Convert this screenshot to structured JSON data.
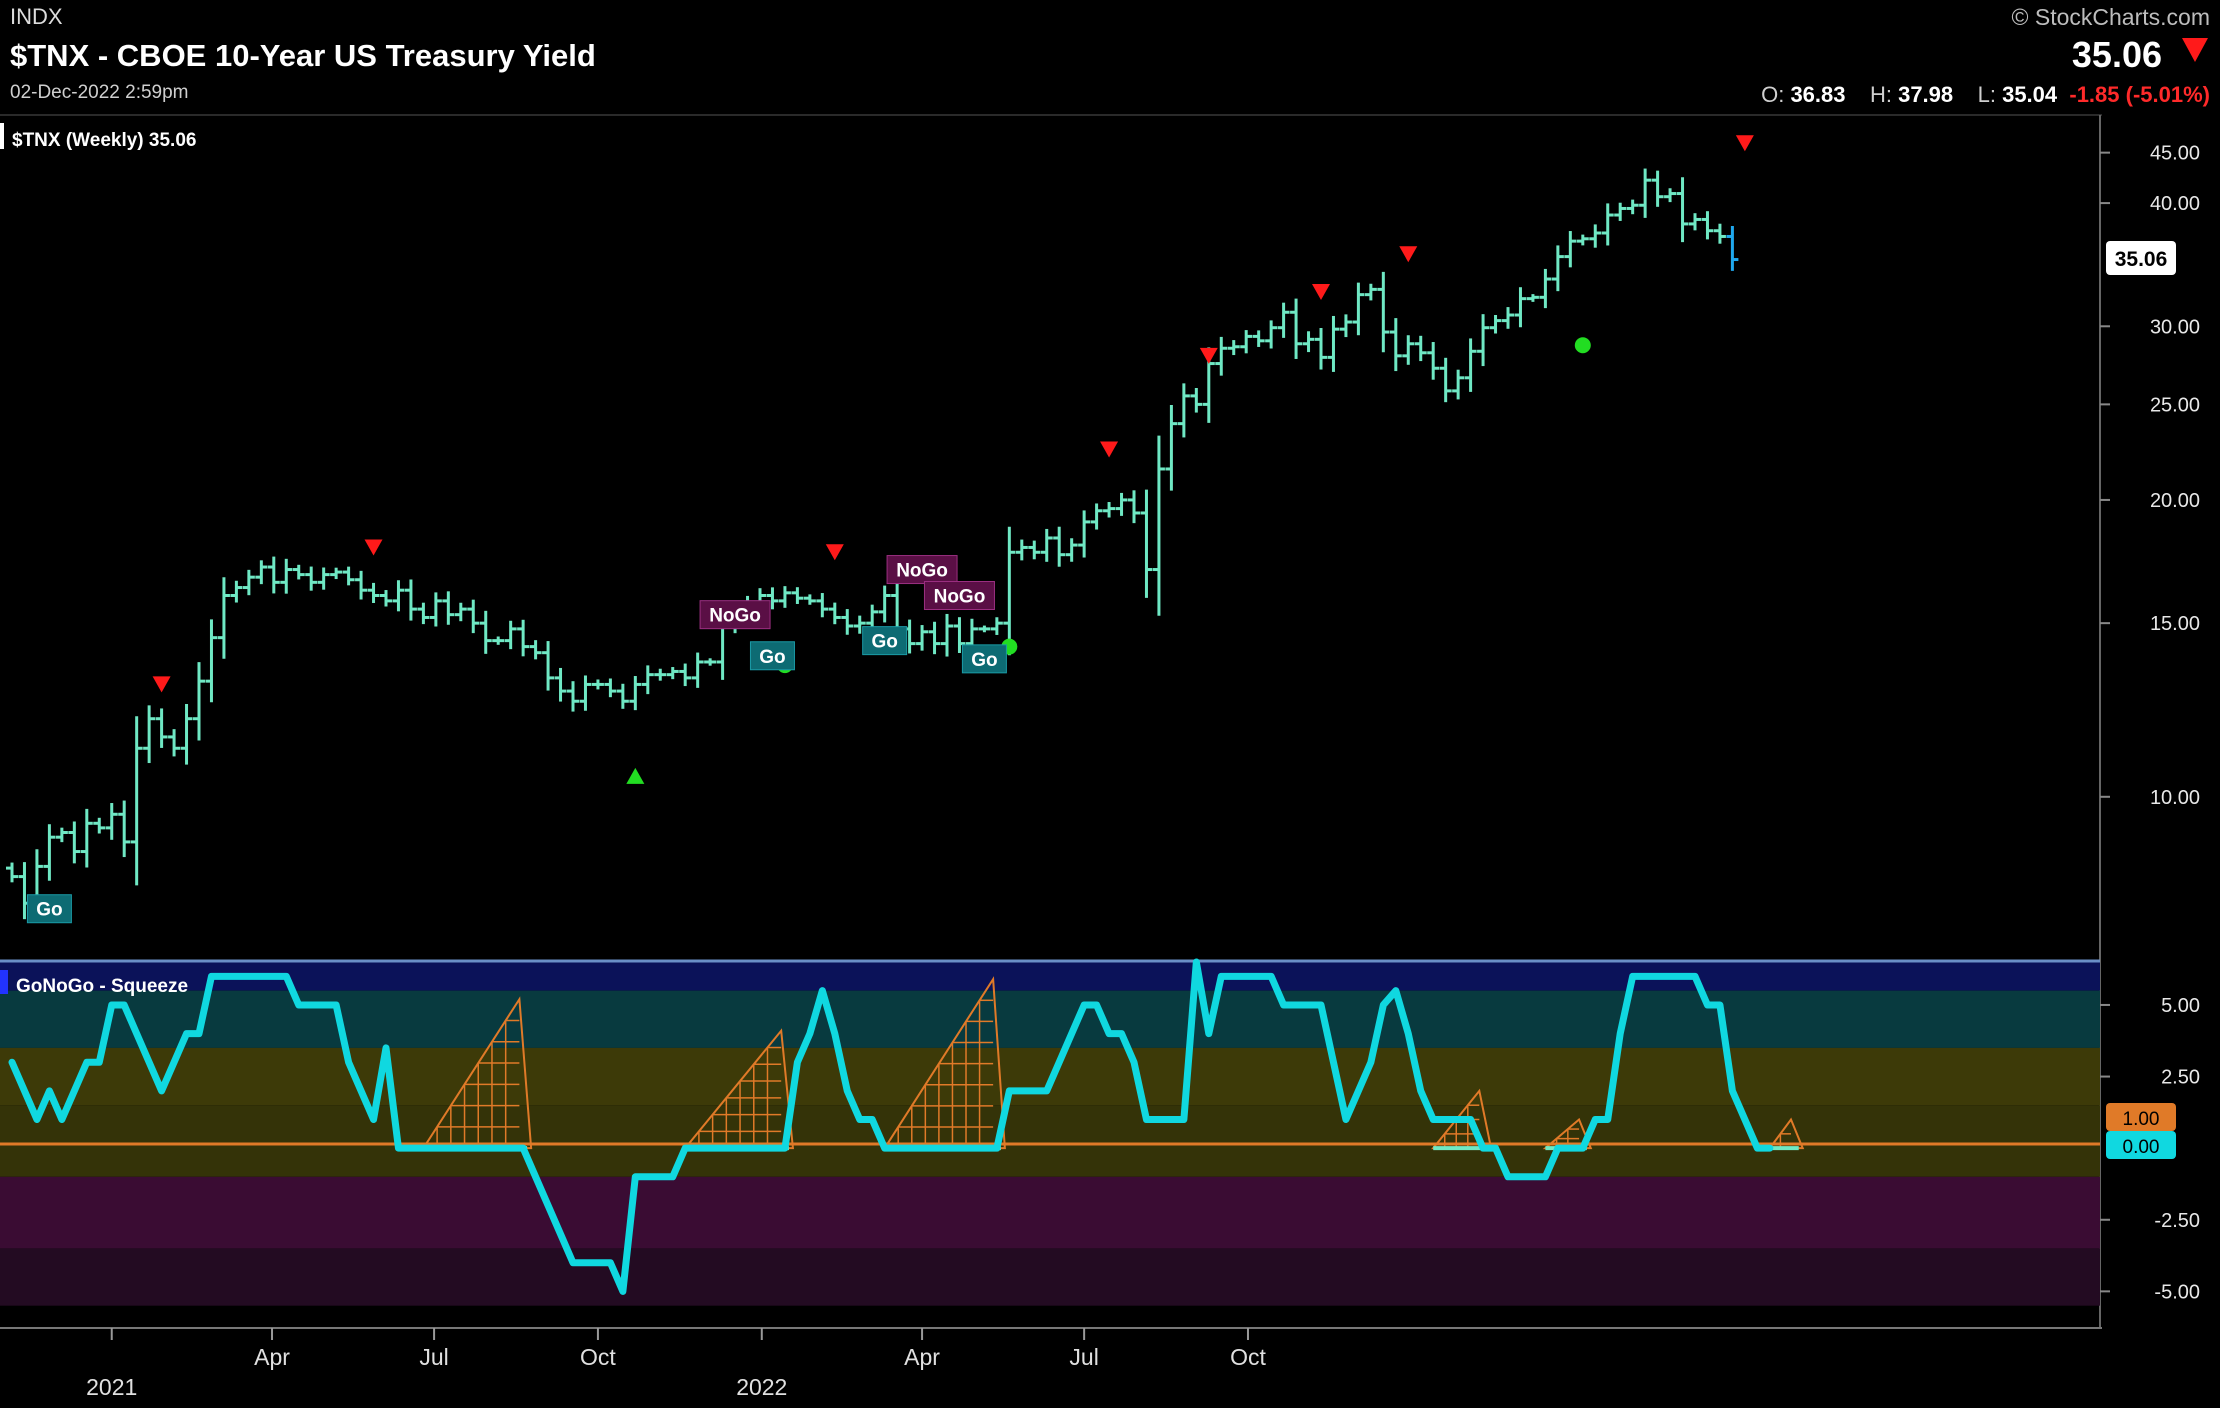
{
  "header": {
    "exchange": "INDX",
    "title": "$TNX - CBOE 10-Year US Treasury Yield",
    "date": "02-Dec-2022 2:59pm",
    "copyright": "© StockCharts.com",
    "last_price": "35.06",
    "open_label": "O:",
    "open": "36.83",
    "high_label": "H:",
    "high": "37.98",
    "low_label": "L:",
    "low": "35.04",
    "change": "-1.85 (-5.01%)"
  },
  "colors": {
    "go_strong": "#1fa8ee",
    "go_weak": "#6fe8c4",
    "nogo_weak": "#f07a30",
    "nogo_strong": "#f08ee8",
    "oscillator": "#10d8e0",
    "down_triangle": "#ff1a1a",
    "up_marker": "#22dd22"
  },
  "chart_data": [
    {
      "type": "ohlc",
      "legend": "$TNX (Weekly) 35.06",
      "price_label": "35.06",
      "y_scale": "log",
      "ylim": [
        7.5,
        48
      ],
      "y_ticks": [
        "45.00",
        "40.00",
        "30.00",
        "25.00",
        "20.00",
        "15.00",
        "10.00"
      ],
      "x_ticks": [
        "2021",
        "Apr",
        "Jul",
        "Oct",
        "2022",
        "Apr",
        "Jul",
        "Oct"
      ],
      "x_tick_dates": [
        "2021-01-01",
        "2021-04-01",
        "2021-07-01",
        "2021-10-01",
        "2022-01-01",
        "2022-04-01",
        "2022-07-01",
        "2022-10-01"
      ],
      "start_date": "2020-11-06",
      "closes": [
        8.3,
        7.8,
        8.5,
        9.1,
        9.2,
        8.8,
        9.4,
        9.3,
        9.6,
        9.0,
        11.2,
        12.0,
        11.5,
        11.2,
        12.0,
        13.1,
        14.5,
        16.0,
        16.3,
        16.7,
        17.1,
        16.5,
        17.0,
        16.8,
        16.5,
        16.8,
        16.9,
        16.6,
        16.2,
        16.0,
        15.8,
        16.2,
        15.5,
        15.2,
        15.8,
        15.3,
        15.5,
        15.0,
        14.4,
        14.4,
        14.8,
        14.2,
        14.0,
        13.2,
        12.8,
        12.5,
        13.0,
        13.0,
        12.8,
        12.5,
        13.0,
        13.3,
        13.3,
        13.4,
        13.2,
        13.7,
        13.7,
        15.0,
        15.4,
        15.7,
        16.0,
        15.8,
        16.1,
        15.9,
        15.8,
        15.5,
        15.2,
        14.9,
        15.0,
        15.4,
        16.0,
        14.8,
        14.3,
        14.7,
        14.3,
        14.9,
        14.3,
        14.8,
        14.8,
        15.0,
        17.7,
        17.9,
        17.7,
        18.3,
        17.6,
        18.0,
        19.0,
        19.5,
        19.6,
        20.0,
        19.4,
        17.0,
        21.5,
        23.9,
        25.5,
        25.0,
        27.5,
        28.5,
        28.6,
        29.3,
        29.0,
        29.9,
        31.0,
        28.8,
        29.1,
        27.9,
        29.8,
        30.3,
        32.3,
        32.7,
        29.6,
        28.0,
        28.8,
        28.2,
        27.2,
        25.8,
        26.6,
        28.3,
        29.9,
        30.4,
        30.8,
        32.0,
        32.1,
        33.5,
        35.3,
        36.6,
        36.8,
        37.3,
        38.9,
        39.5,
        39.8,
        42.2,
        40.6,
        40.9,
        38.1,
        38.5,
        37.5,
        37.0,
        35.06
      ],
      "bar_colors": "WWWWWWWWWWWWWWWWWWWWWWWWWWWWWWWWWWWWWWWWWWWWWWWWWWWWWWWWWWWWWWWWWWWWWWWWWWWWWWWWWWWWWWWWWWWWWWWWWWWWWWWWWWWWWWWWWWWWWWWWWWWWWWWWWWWWWWWWWW",
      "labels": [
        {
          "text": "Go",
          "week": 3,
          "value": 7.7,
          "kind": "go"
        },
        {
          "text": "NoGo",
          "week": 58,
          "value": 15.3,
          "kind": "nogo"
        },
        {
          "text": "Go",
          "week": 61,
          "value": 13.9,
          "kind": "go"
        },
        {
          "text": "NoGo",
          "week": 73,
          "value": 17.0,
          "kind": "nogo"
        },
        {
          "text": "Go",
          "week": 70,
          "value": 14.4,
          "kind": "go"
        },
        {
          "text": "NoGo",
          "week": 76,
          "value": 16.0,
          "kind": "nogo"
        },
        {
          "text": "Go",
          "week": 78,
          "value": 13.8,
          "kind": "go"
        }
      ],
      "down_markers": [
        {
          "week": 12,
          "value": 13.0
        },
        {
          "week": 29,
          "value": 17.9
        },
        {
          "week": 66,
          "value": 17.7
        },
        {
          "week": 88,
          "value": 22.5
        },
        {
          "week": 96,
          "value": 28.0
        },
        {
          "week": 105,
          "value": 32.5
        },
        {
          "week": 112,
          "value": 35.5
        },
        {
          "week": 139,
          "value": 46.0
        }
      ],
      "up_markers": [
        {
          "week": 50,
          "value": 10.5,
          "shape": "triangle"
        },
        {
          "week": 62,
          "value": 13.6,
          "shape": "dot"
        },
        {
          "week": 80,
          "value": 14.2,
          "shape": "dot"
        },
        {
          "week": 126,
          "value": 28.7,
          "shape": "dot"
        }
      ]
    },
    {
      "type": "line",
      "legend": "GoNoGo - Squeeze",
      "ylim": [
        -6,
        6.5
      ],
      "y_ticks": [
        "5.00",
        "2.50",
        "-2.50",
        "-5.00"
      ],
      "label_squeeze": "1.00",
      "label_osc": "0.00",
      "values": [
        3,
        2,
        1,
        2,
        1,
        2,
        3,
        3,
        5,
        5,
        4,
        3,
        2,
        3,
        4,
        4,
        6,
        6,
        6,
        6,
        6,
        6,
        6,
        5,
        5,
        5,
        5,
        3,
        2,
        1,
        3.5,
        0,
        0,
        0,
        0,
        0,
        0,
        0,
        0,
        0,
        0,
        0,
        -1,
        -2,
        -3,
        -4,
        -4,
        -4,
        -4,
        -5,
        -1,
        -1,
        -1,
        -1,
        0,
        0,
        0,
        0,
        0,
        0,
        0,
        0,
        0,
        3,
        4,
        5.5,
        4,
        2,
        1,
        1,
        0,
        0,
        0,
        0,
        0,
        0,
        0,
        0,
        0,
        0,
        2,
        2,
        2,
        2,
        3,
        4,
        5,
        5,
        4,
        4,
        3,
        1,
        1,
        1,
        1,
        6.5,
        4,
        6,
        6,
        6,
        6,
        6,
        5,
        5,
        5,
        5,
        3,
        1,
        2,
        3,
        5,
        5.5,
        4,
        2,
        1,
        1,
        1,
        1,
        0,
        0,
        -1,
        -1,
        -1,
        -1,
        0,
        0,
        0,
        1,
        1,
        4,
        6,
        6,
        6,
        6,
        6,
        6,
        5,
        5,
        2,
        1,
        0,
        0
      ],
      "squeeze_peaks": [
        {
          "start": 33,
          "end": 41,
          "peak": 5.2
        },
        {
          "start": 54,
          "end": 62,
          "peak": 4.1
        },
        {
          "start": 70,
          "end": 79,
          "peak": 5.9
        },
        {
          "start": 114,
          "end": 118,
          "peak": 2.0
        },
        {
          "start": 123,
          "end": 126,
          "peak": 1.0
        },
        {
          "start": 141,
          "end": 143,
          "peak": 1.0
        }
      ]
    }
  ]
}
